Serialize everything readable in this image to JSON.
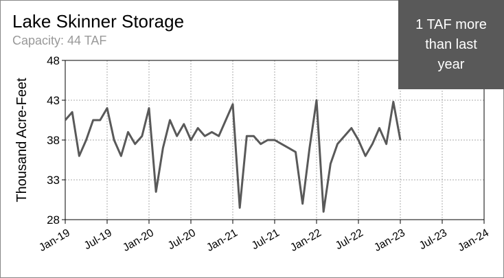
{
  "chart_data": {
    "type": "line",
    "title": "Lake Skinner Storage",
    "subtitle": "Capacity: 44 TAF",
    "ylabel": "Thousand Acre-Feet",
    "annotation": "1 TAF more than last year",
    "x": [
      "2019-01",
      "2019-02",
      "2019-03",
      "2019-04",
      "2019-05",
      "2019-06",
      "2019-07",
      "2019-08",
      "2019-09",
      "2019-10",
      "2019-11",
      "2019-12",
      "2020-01",
      "2020-02",
      "2020-03",
      "2020-04",
      "2020-05",
      "2020-06",
      "2020-07",
      "2020-08",
      "2020-09",
      "2020-10",
      "2020-11",
      "2020-12",
      "2021-01",
      "2021-02",
      "2021-03",
      "2021-04",
      "2021-05",
      "2021-06",
      "2021-07",
      "2021-08",
      "2021-09",
      "2021-10",
      "2021-11",
      "2021-12",
      "2022-01",
      "2022-02",
      "2022-03",
      "2022-04",
      "2022-05",
      "2022-06",
      "2022-07",
      "2022-08",
      "2022-09",
      "2022-10",
      "2022-11",
      "2022-12",
      "2023-01"
    ],
    "series": [
      {
        "name": "Storage",
        "color": "#595959",
        "values": [
          40.5,
          41.5,
          36,
          38,
          40.5,
          40.5,
          42,
          38,
          36,
          39,
          37.5,
          38.5,
          42,
          31.5,
          37,
          40.5,
          38.5,
          40,
          38,
          39.5,
          38.5,
          39,
          38.5,
          40.5,
          42.5,
          29.5,
          38.5,
          38.5,
          37.5,
          38,
          38,
          37.5,
          37,
          36.5,
          30,
          37,
          43,
          29,
          35,
          37.5,
          38.5,
          39.5,
          38,
          36,
          37.5,
          39.5,
          37.5,
          42.8,
          38
        ]
      }
    ],
    "xlim": [
      "2019-01",
      "2024-01"
    ],
    "xticks": [
      {
        "value": "2019-01",
        "label": "Jan-19"
      },
      {
        "value": "2019-07",
        "label": "Jul-19"
      },
      {
        "value": "2020-01",
        "label": "Jan-20"
      },
      {
        "value": "2020-07",
        "label": "Jul-20"
      },
      {
        "value": "2021-01",
        "label": "Jan-21"
      },
      {
        "value": "2021-07",
        "label": "Jul-21"
      },
      {
        "value": "2022-01",
        "label": "Jan-22"
      },
      {
        "value": "2022-07",
        "label": "Jul-22"
      },
      {
        "value": "2023-01",
        "label": "Jan-23"
      },
      {
        "value": "2023-07",
        "label": "Jul-23"
      },
      {
        "value": "2024-01",
        "label": "Jan-24"
      }
    ],
    "ylim": [
      28,
      48
    ],
    "yticks": [
      28,
      33,
      38,
      43,
      48
    ],
    "grid": true
  }
}
